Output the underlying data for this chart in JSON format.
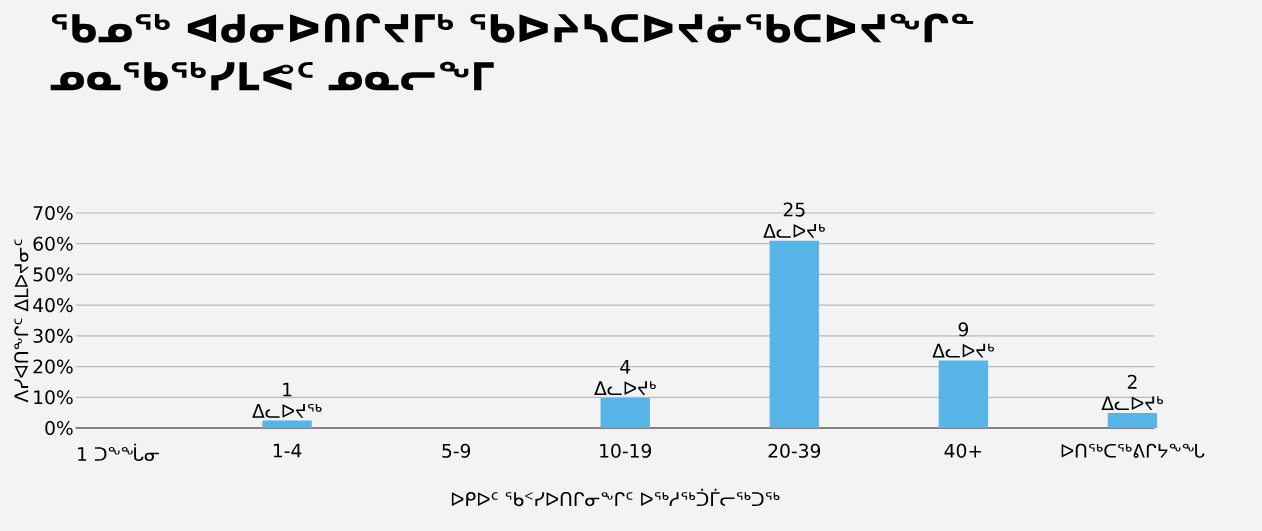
{
  "chart_data": {
    "type": "bar",
    "title": "ᖃᓄᖅ ᐊᑯᓂᐅᑎᒋᔪᒥᒃ ᖃᐅᔨᓴᑕᐅᔪᓃᖃᑕᐅᔪᖏᓐ ᓄᓇᖃᖅᓯᒪᕙᑦ ᓄᓇᓕᖕᒥ",
    "xlabel": "ᐅᑭᐅᑦ ᖃᑉᓯᐅᑎᒋᓂᖕᒋᑦ ᐅᖅᓱᖅᑑᒦᓕᖅᑐᖅ",
    "ylabel": "ᐱᓯᐊᑎᖕᒋᑦ ᐃᒪᐅᔪᓂᑦ",
    "categories": [
      "1 ᑐᖕᖔᓂ",
      "1-4",
      "5-9",
      "10-19",
      "20-39",
      "40+",
      "ᐅᑎᖅᑕᖅᕕᒋᔭᖕᖓ"
    ],
    "values": [
      null,
      2.4,
      null,
      9.8,
      61,
      22,
      4.9
    ],
    "annotations": [
      {
        "text": "1 ᐃᓚᐅᔪᖅ",
        "x": "1-4",
        "y": 2.4
      },
      {
        "text": "4 ᐃᓚᐅᔪᒃ",
        "x": "10-19",
        "y": 9.8
      },
      {
        "text": "25 ᐃᓚᐅᔪᒃ",
        "x": "20-39",
        "y": 61
      },
      {
        "text": "9 ᐃᓚᐅᔪᒃ",
        "x": "40+",
        "y": 22
      },
      {
        "text": "2 ᐃᓚᐅᔪᒃ",
        "x": "ᐅᑎᖅᑕᖅᕕᒋᔭᖕᖓ",
        "y": 4.9
      }
    ],
    "color": "#56b4e6",
    "ylim": [
      0,
      70
    ],
    "yticks": [
      {
        "value": 0,
        "label": "0%"
      },
      {
        "value": 10,
        "label": "10%"
      },
      {
        "value": 20,
        "label": "20%"
      },
      {
        "value": 30,
        "label": "30%"
      },
      {
        "value": 40,
        "label": "40%"
      },
      {
        "value": 50,
        "label": "50%"
      },
      {
        "value": 60,
        "label": "60%"
      },
      {
        "value": 70,
        "label": "70%"
      }
    ],
    "grid": "y"
  }
}
